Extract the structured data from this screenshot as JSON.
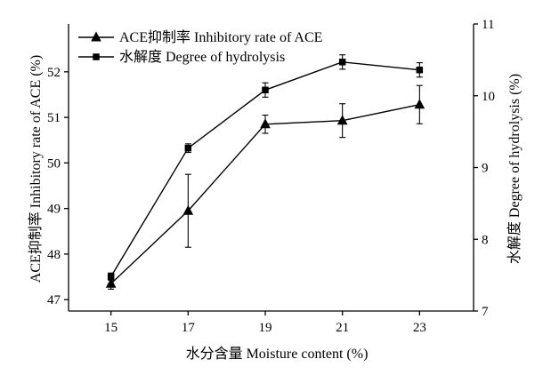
{
  "chart_data": {
    "type": "line",
    "x": [
      15,
      17,
      19,
      21,
      23
    ],
    "xlabel": "水分含量 Moisture content (%)",
    "ylabel_left": "ACE抑制率 Inhibitory rate of ACE (%)",
    "ylabel_right": "水解度 Degree of hydrolysis (%)",
    "xlim": [
      13.9,
      24.4
    ],
    "ylim_left": [
      46.75,
      53.05
    ],
    "ylim_right": [
      7,
      11
    ],
    "x_ticks": [
      "15",
      "17",
      "19",
      "21",
      "23"
    ],
    "y_ticks_left": [
      "47",
      "48",
      "49",
      "50",
      "51",
      "52"
    ],
    "y_ticks_right": [
      "7",
      "8",
      "9",
      "10",
      "11"
    ],
    "legend_position": "top-left",
    "grid": false,
    "series": [
      {
        "name": "ACE抑制率 Inhibitory rate of ACE",
        "axis": "left",
        "marker": "triangle",
        "values": [
          47.35,
          48.95,
          50.85,
          50.93,
          51.28
        ],
        "errors": [
          0.12,
          0.8,
          0.2,
          0.37,
          0.42
        ]
      },
      {
        "name": "水解度 Degree of hydrolysis",
        "axis": "right",
        "marker": "square",
        "values": [
          7.48,
          9.27,
          10.08,
          10.47,
          10.36
        ],
        "errors": [
          0.05,
          0.06,
          0.1,
          0.1,
          0.1
        ]
      }
    ]
  }
}
